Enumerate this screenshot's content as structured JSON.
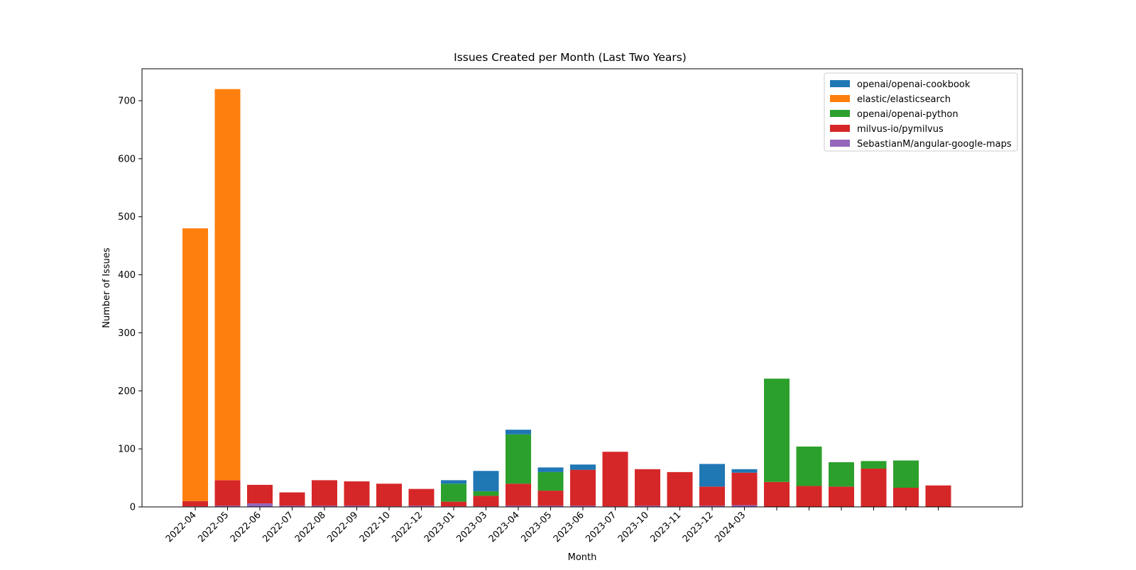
{
  "chart_data": {
    "type": "bar",
    "stacked": true,
    "title": "Issues Created per Month (Last Two Years)",
    "xlabel": "Month",
    "ylabel": "Number of Issues",
    "ylim": [
      0,
      755
    ],
    "yticks": [
      0,
      100,
      200,
      300,
      400,
      500,
      600,
      700
    ],
    "grid": false,
    "legend_position": "top-right",
    "categories": [
      "2022-04",
      "2022-05",
      "2022-06",
      "2022-07",
      "2022-08",
      "2022-09",
      "2022-10",
      "2022-12",
      "2023-01",
      "2023-03",
      "2023-04",
      "2023-05",
      "2023-06",
      "2023-07",
      "2023-10",
      "2023-11",
      "2023-12",
      "2024-03",
      "",
      "",
      "",
      "",
      "",
      ""
    ],
    "series": [
      {
        "name": "SebastianM/angular-google-maps",
        "color": "#9467bd",
        "values": [
          1,
          2,
          6,
          2,
          2,
          2,
          1,
          2,
          1,
          1,
          2,
          2,
          2,
          1,
          2,
          1,
          2,
          3,
          0,
          0,
          0,
          0,
          0,
          0
        ]
      },
      {
        "name": "milvus-io/pymilvus",
        "color": "#d62728",
        "values": [
          9,
          44,
          32,
          23,
          44,
          42,
          39,
          29,
          8,
          18,
          38,
          26,
          62,
          94,
          63,
          59,
          33,
          56,
          43,
          36,
          35,
          66,
          33,
          37
        ]
      },
      {
        "name": "openai/openai-python",
        "color": "#2ca02c",
        "values": [
          0,
          0,
          0,
          0,
          0,
          0,
          0,
          0,
          31,
          8,
          85,
          32,
          0,
          0,
          0,
          0,
          0,
          0,
          178,
          68,
          42,
          13,
          47,
          0
        ]
      },
      {
        "name": "elastic/elasticsearch",
        "color": "#ff7f0e",
        "values": [
          470,
          674,
          0,
          0,
          0,
          0,
          0,
          0,
          0,
          0,
          0,
          0,
          0,
          0,
          0,
          0,
          0,
          0,
          0,
          0,
          0,
          0,
          0,
          0
        ]
      },
      {
        "name": "openai/openai-cookbook",
        "color": "#1f77b4",
        "values": [
          0,
          0,
          0,
          0,
          0,
          0,
          0,
          0,
          6,
          35,
          8,
          8,
          9,
          0,
          0,
          0,
          39,
          6,
          0,
          0,
          0,
          0,
          0,
          0
        ]
      }
    ],
    "legend_order": [
      "openai/openai-cookbook",
      "elastic/elasticsearch",
      "openai/openai-python",
      "milvus-io/pymilvus",
      "SebastianM/angular-google-maps"
    ]
  }
}
